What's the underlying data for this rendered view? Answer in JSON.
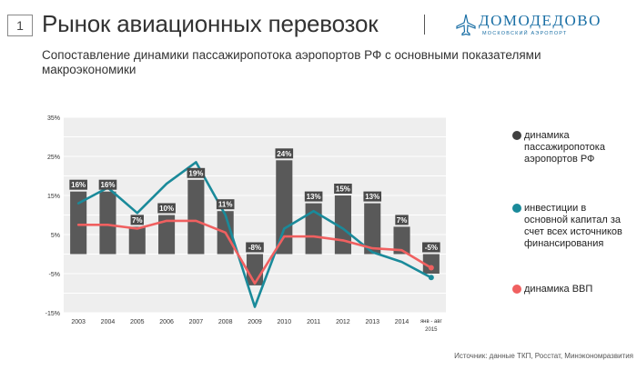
{
  "slide": {
    "number": "1",
    "title": "Рынок авиационных перевозок"
  },
  "logo": {
    "name": "ДОМОДЕДОВО",
    "sub": "МОСКОВСКИЙ АЭРОПОРТ"
  },
  "subtitle": "Сопоставление динамики пассажиропотока аэропортов РФ с основными показателями макроэкономики",
  "source": "Источник: данные ТКП, Росстат, Минэкономразвития",
  "colors": {
    "bars": "#595959",
    "investment": "#1a8a9a",
    "gdp": "#f06060",
    "plot_bg": "#eeeeee"
  },
  "chart_data": {
    "type": "bar",
    "categories": [
      "2003",
      "2004",
      "2005",
      "2006",
      "2007",
      "2008",
      "2009",
      "2010",
      "2011",
      "2012",
      "2013",
      "2014",
      "янв - авг 2015"
    ],
    "ylim": [
      -15,
      35
    ],
    "yticks": [
      "35%",
      "25%",
      "15%",
      "5%",
      "-5%",
      "-15%"
    ],
    "grid": true,
    "series": [
      {
        "name": "динамика пассажиропотока аэропортов РФ",
        "type": "bar",
        "values": [
          16,
          16,
          7,
          10,
          19,
          11,
          -8,
          24,
          13,
          15,
          13,
          7,
          -5
        ],
        "labels": [
          "16%",
          "16%",
          "7%",
          "10%",
          "19%",
          "11%",
          "-8%",
          "24%",
          "13%",
          "15%",
          "13%",
          "7%",
          "-5%"
        ]
      },
      {
        "name": "инвестиции в основной капитал за счет всех источников финансирования",
        "type": "line",
        "values": [
          13,
          17,
          10.5,
          18,
          23.5,
          10,
          -13.5,
          6.5,
          11,
          6.5,
          0.5,
          -2,
          -6
        ]
      },
      {
        "name": "динамика ВВП",
        "type": "line",
        "values": [
          7.5,
          7.5,
          6.5,
          8.5,
          8.5,
          5.5,
          -7.5,
          4.5,
          4.5,
          3.5,
          1.5,
          1,
          -3.5
        ]
      }
    ]
  }
}
